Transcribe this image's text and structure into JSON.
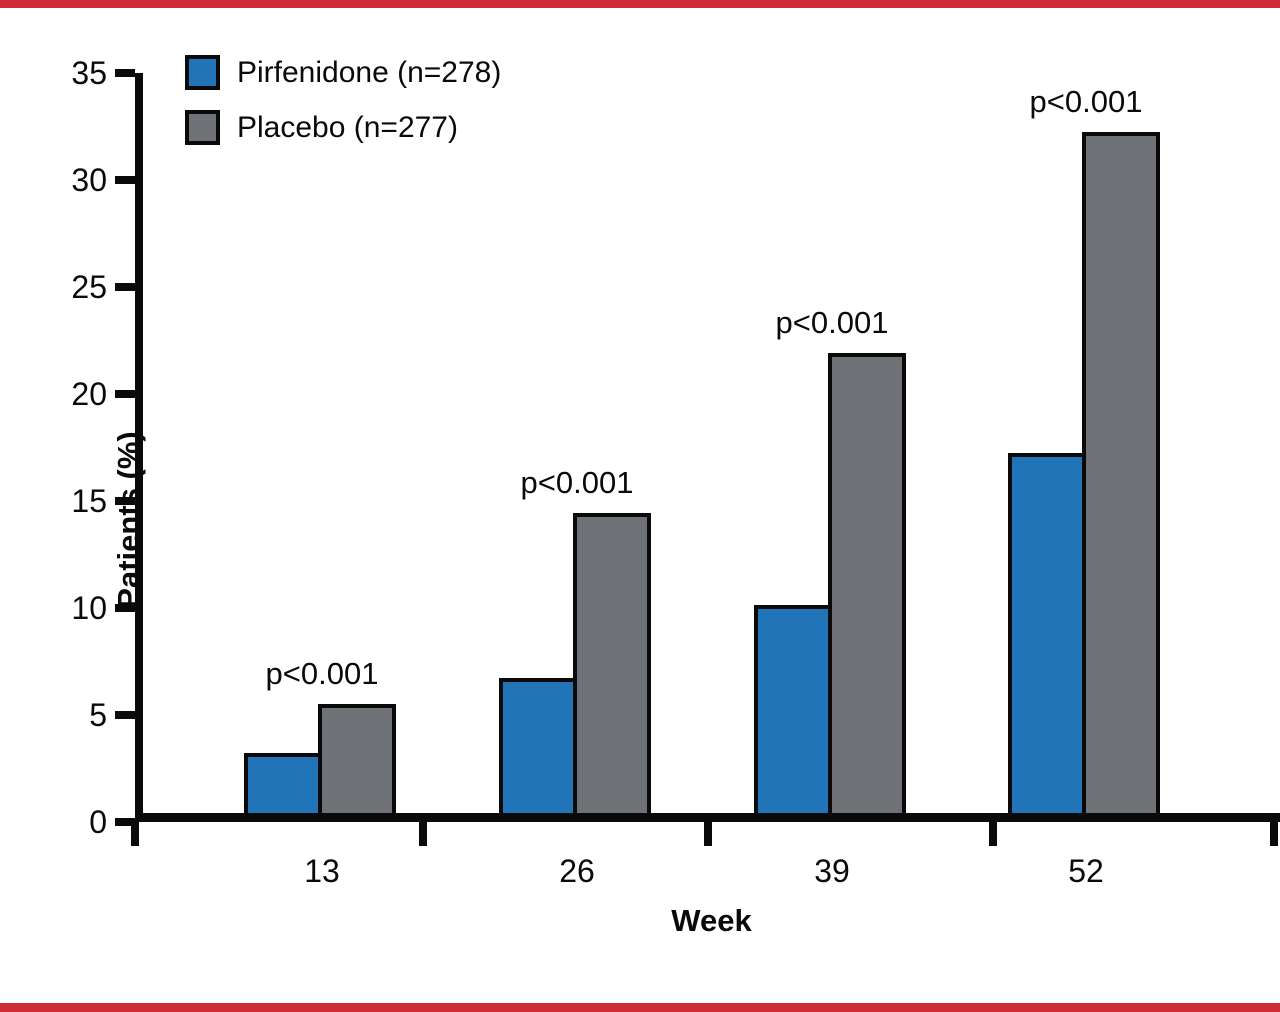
{
  "page": {
    "accent_rule_color": "#D02C38",
    "background": "#ffffff",
    "axis_color": "#0a0a0a"
  },
  "chart_data": {
    "type": "bar",
    "title": "",
    "xlabel": "Week",
    "ylabel": "Patients (%)",
    "ylim": [
      0,
      35
    ],
    "yticks": [
      0,
      5,
      10,
      15,
      20,
      25,
      30,
      35
    ],
    "categories": [
      "13",
      "26",
      "39",
      "52"
    ],
    "series": [
      {
        "name": "Pirfenidone (n=278)",
        "color": "#2274B9",
        "values": [
          2.8,
          6.3,
          9.7,
          16.8
        ]
      },
      {
        "name": "Placebo (n=277)",
        "color": "#6F7276",
        "values": [
          5.1,
          14.0,
          21.5,
          31.8
        ]
      }
    ],
    "annotations": [
      {
        "text": "p<0.001",
        "category": "13"
      },
      {
        "text": "p<0.001",
        "category": "26"
      },
      {
        "text": "p<0.001",
        "category": "39"
      },
      {
        "text": "p<0.001",
        "category": "52"
      }
    ],
    "legend_position": "top-left",
    "grid": false
  }
}
